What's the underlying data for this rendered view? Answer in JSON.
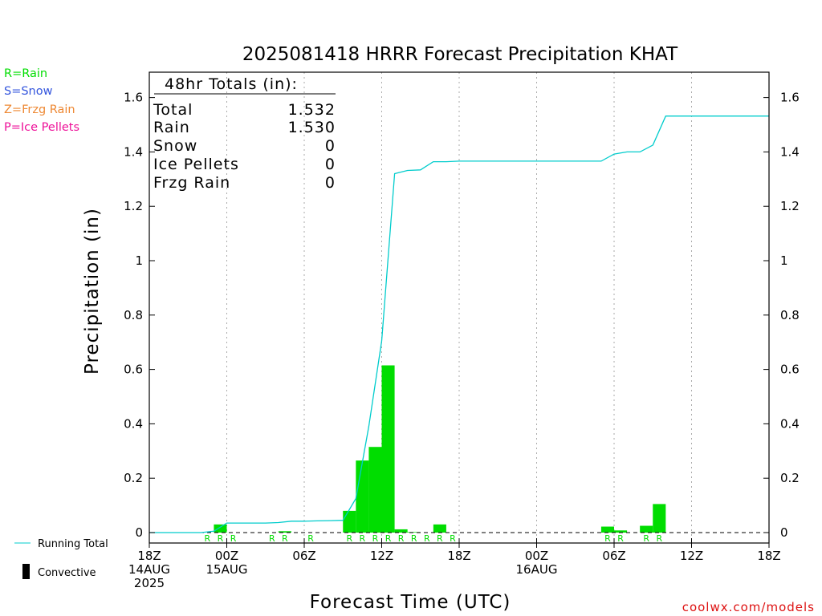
{
  "chart_data": {
    "type": "bar",
    "title": "2025081418 HRRR Forecast Precipitation KHAT",
    "xlabel": "Forecast Time (UTC)",
    "ylabel": "Precipitation (in)",
    "ylim": [
      0,
      1.68
    ],
    "xlim_hours": [
      0,
      48
    ],
    "yticks": [
      0,
      0.2,
      0.4,
      0.6,
      0.8,
      1,
      1.2,
      1.4,
      1.6
    ],
    "ytick_labels": [
      "0",
      "0.2",
      "0.4",
      "0.6",
      "0.8",
      "1",
      "1.2",
      "1.4",
      "1.6"
    ],
    "xticks": [
      {
        "hour": 0,
        "lines": [
          "18Z",
          "14AUG",
          "2025"
        ]
      },
      {
        "hour": 6,
        "lines": [
          "00Z",
          "15AUG"
        ]
      },
      {
        "hour": 12,
        "lines": [
          "06Z"
        ]
      },
      {
        "hour": 18,
        "lines": [
          "12Z"
        ]
      },
      {
        "hour": 24,
        "lines": [
          "18Z"
        ]
      },
      {
        "hour": 30,
        "lines": [
          "00Z",
          "16AUG"
        ]
      },
      {
        "hour": 36,
        "lines": [
          "06Z"
        ]
      },
      {
        "hour": 42,
        "lines": [
          "12Z"
        ]
      },
      {
        "hour": 48,
        "lines": [
          "18Z"
        ]
      }
    ],
    "grid": "vertical dotted at 6-hour ticks",
    "bars": {
      "name": "Rain",
      "color": "#00dd00",
      "hours": [
        6,
        11,
        16,
        17,
        18,
        19,
        20,
        21,
        23,
        36,
        37,
        39,
        40
      ],
      "values": [
        0.03,
        0.005,
        0.08,
        0.265,
        0.315,
        0.615,
        0.012,
        0.002,
        0.03,
        0.022,
        0.008,
        0.025,
        0.105
      ]
    },
    "running_total": {
      "name": "Running Total",
      "color": "#00cccc",
      "hours": [
        0,
        1,
        2,
        3,
        4,
        5,
        6,
        7,
        8,
        9,
        10,
        11,
        12,
        13,
        14,
        15,
        16,
        17,
        18,
        19,
        20,
        21,
        22,
        23,
        24,
        25,
        26,
        27,
        28,
        29,
        30,
        31,
        32,
        33,
        34,
        35,
        36,
        37,
        38,
        39,
        40,
        41,
        42,
        43,
        44,
        45,
        46,
        47,
        48
      ],
      "values": [
        0,
        0,
        0,
        0,
        0,
        0.005,
        0.035,
        0.035,
        0.035,
        0.035,
        0.037,
        0.042,
        0.042,
        0.043,
        0.044,
        0.045,
        0.125,
        0.39,
        0.705,
        1.32,
        1.332,
        1.334,
        1.364,
        1.364,
        1.366,
        1.366,
        1.366,
        1.366,
        1.366,
        1.366,
        1.366,
        1.366,
        1.366,
        1.366,
        1.366,
        1.366,
        1.392,
        1.4,
        1.4,
        1.425,
        1.532,
        1.532,
        1.532,
        1.532,
        1.532,
        1.532,
        1.532,
        1.532,
        1.532
      ]
    },
    "ptype_hours": [
      5,
      6,
      7,
      10,
      11,
      13,
      16,
      17,
      18,
      19,
      20,
      21,
      22,
      23,
      24,
      36,
      37,
      39,
      40
    ],
    "ptype_letter": "R",
    "legend": "left"
  },
  "totals_box": {
    "header": "48hr Totals (in):",
    "rows": [
      {
        "label": "Total",
        "value": "1.532"
      },
      {
        "label": "Rain",
        "value": "1.530"
      },
      {
        "label": "Snow",
        "value": "0"
      },
      {
        "label": "Ice Pellets",
        "value": "0"
      },
      {
        "label": "Frzg Rain",
        "value": "0"
      }
    ]
  },
  "ptype_legend": [
    {
      "text": "R=Rain",
      "color": "#00dd00"
    },
    {
      "text": "S=Snow",
      "color": "#3355dd"
    },
    {
      "text": "Z=Frzg Rain",
      "color": "#ee8833"
    },
    {
      "text": "P=Ice Pellets",
      "color": "#ee1199"
    }
  ],
  "series_legend": {
    "running_total_label": "Running Total",
    "convective_label": "Convective"
  },
  "credit": "coolwx.com/models"
}
